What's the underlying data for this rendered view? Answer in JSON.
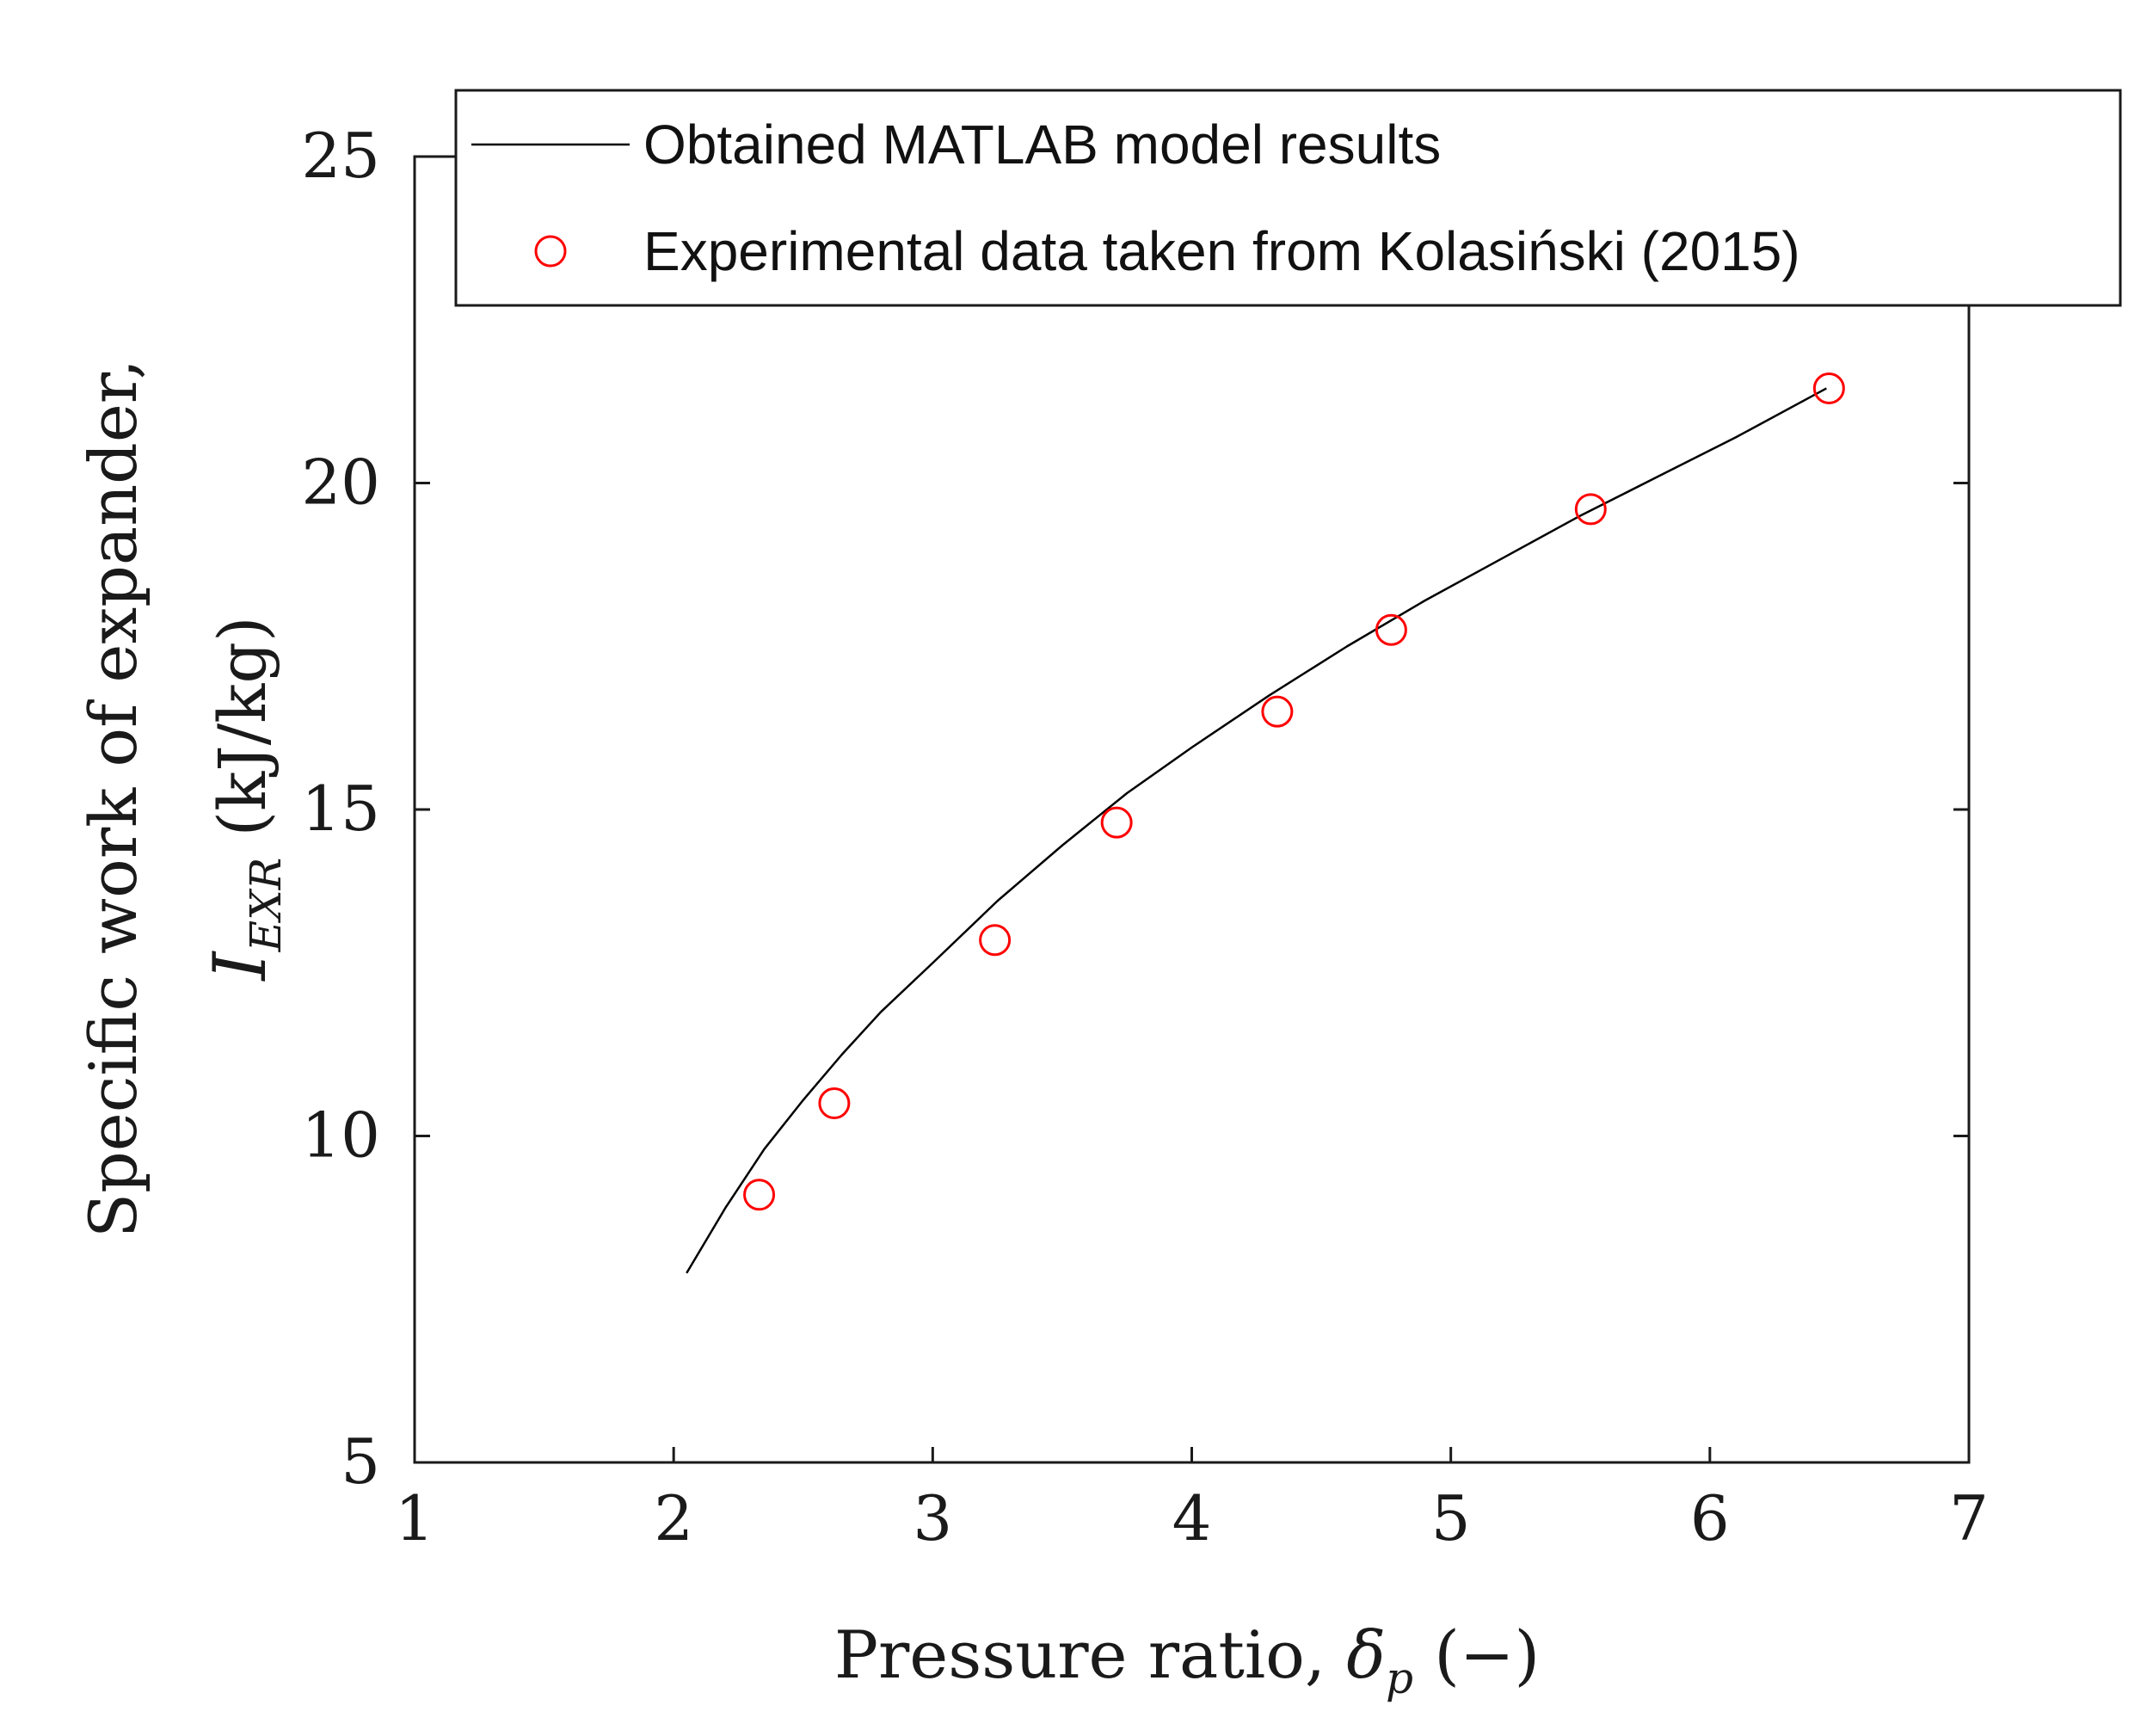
{
  "chart_data": {
    "type": "line",
    "title": "",
    "xlabel": {
      "prefix": "Pressure ratio, ",
      "symbol": "δ",
      "sub": "p",
      "suffix": " (−)"
    },
    "ylabel": {
      "line1": "Specific work of expander,",
      "symbol": "I",
      "sub": "EXR",
      "suffix": " (kJ/kg)"
    },
    "xlim": [
      1,
      7
    ],
    "ylim": [
      5,
      25
    ],
    "xticks": [
      1,
      2,
      3,
      4,
      5,
      6,
      7
    ],
    "yticks": [
      5,
      10,
      15,
      20,
      25
    ],
    "grid": false,
    "legend_position": "top",
    "colors": {
      "model": "#000000",
      "experimental": "#ff0000",
      "axes": "#1a1a1a"
    },
    "series": [
      {
        "name": "Obtained MATLAB model results",
        "kind": "line",
        "x": [
          2.05,
          2.2,
          2.35,
          2.5,
          2.65,
          2.8,
          3.0,
          3.25,
          3.5,
          3.75,
          4.0,
          4.3,
          4.6,
          4.9,
          5.2,
          5.5,
          5.8,
          6.1,
          6.45
        ],
        "y": [
          7.9,
          8.9,
          9.8,
          10.55,
          11.25,
          11.9,
          12.65,
          13.6,
          14.45,
          15.25,
          15.95,
          16.75,
          17.5,
          18.2,
          18.85,
          19.5,
          20.1,
          20.7,
          21.45
        ]
      },
      {
        "name": "Experimental data taken from Kolasiński (2015)",
        "kind": "scatter",
        "marker": "circle-open",
        "x": [
          2.33,
          2.62,
          3.24,
          3.71,
          4.33,
          4.77,
          5.54,
          6.46
        ],
        "y": [
          9.1,
          10.5,
          13.0,
          14.8,
          16.5,
          17.75,
          19.6,
          21.45
        ]
      }
    ]
  }
}
